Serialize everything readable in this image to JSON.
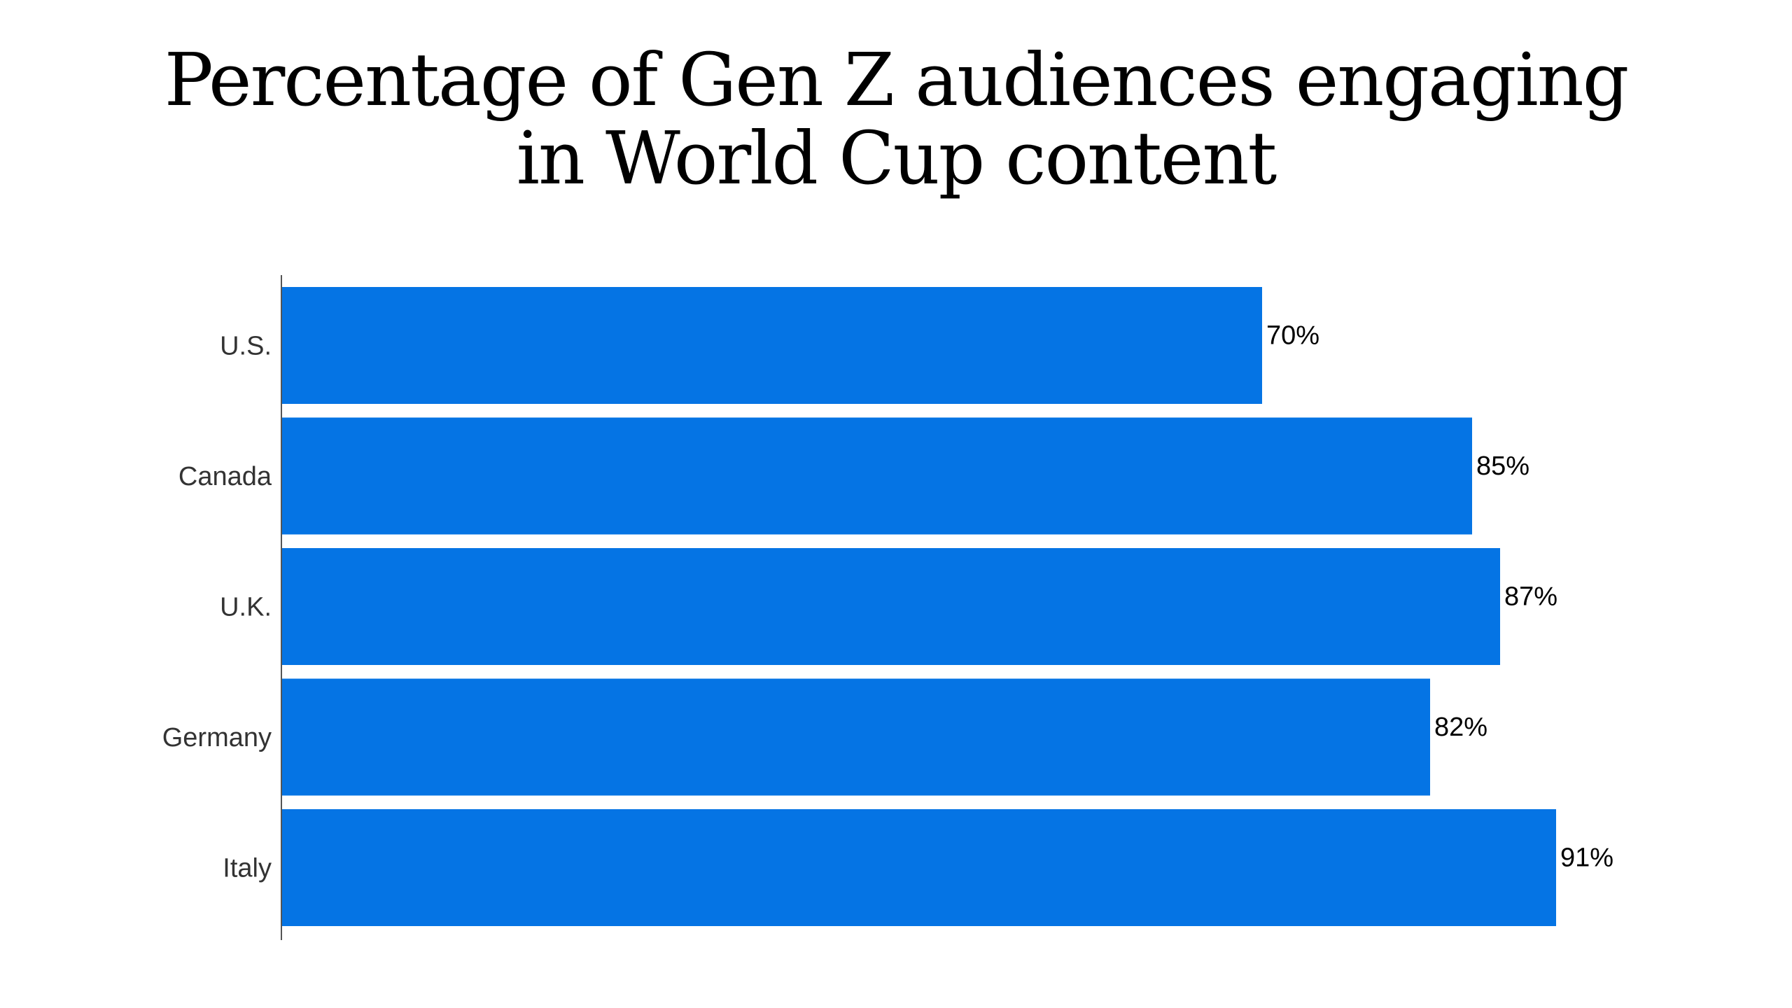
{
  "chart_data": {
    "type": "bar",
    "orientation": "horizontal",
    "title_lines": [
      "Percentage of Gen Z audiences engaging",
      "in World Cup content"
    ],
    "categories": [
      "U.S.",
      "Canada",
      "U.K.",
      "Germany",
      "Italy"
    ],
    "values": [
      70,
      85,
      87,
      82,
      91
    ],
    "value_labels": [
      "70%",
      "85%",
      "87%",
      "82%",
      "91%"
    ],
    "xlabel": "",
    "ylabel": "",
    "xlim": [
      0,
      100
    ],
    "grid": false,
    "bar_color": "#0574E4"
  }
}
